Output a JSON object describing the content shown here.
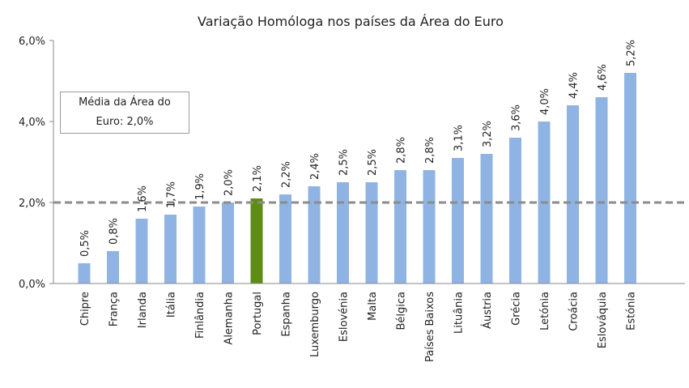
{
  "chart_data": {
    "type": "bar",
    "title": "Variação Homóloga nos países da Área do Euro",
    "xlabel": "",
    "ylabel": "",
    "ylim": [
      0,
      6
    ],
    "yticks": [
      "0,0%",
      "2,0%",
      "4,0%",
      "6,0%"
    ],
    "categories": [
      "Chipre",
      "França",
      "Irlanda",
      "Itália",
      "Finlândia",
      "Alemanha",
      "Portugal",
      "Espanha",
      "Luxemburgo",
      "Eslovénia",
      "Malta",
      "Bélgica",
      "Países Baixos",
      "Lituânia",
      "Áustria",
      "Grécia",
      "Letónia",
      "Croácia",
      "Eslováquia",
      "Estónia"
    ],
    "values": [
      0.5,
      0.8,
      1.6,
      1.7,
      1.9,
      2.0,
      2.1,
      2.2,
      2.4,
      2.5,
      2.5,
      2.8,
      2.8,
      3.1,
      3.2,
      3.6,
      4.0,
      4.4,
      4.6,
      5.2
    ],
    "value_labels": [
      "0,5%",
      "0,8%",
      "1,6%",
      "1,7%",
      "1,9%",
      "2,0%",
      "2,1%",
      "2,2%",
      "2,4%",
      "2,5%",
      "2,5%",
      "2,8%",
      "2,8%",
      "3,1%",
      "3,2%",
      "3,6%",
      "4,0%",
      "4,4%",
      "4,6%",
      "5,2%"
    ],
    "highlight": "Portugal",
    "reference_line": {
      "value": 2.0,
      "style": "dashed"
    },
    "annotation": "Média da Área do Euro: 2,0%",
    "colors": {
      "bar": "#8fb4e3",
      "highlight": "#5e8c16",
      "reference_line": "#8c8c8c"
    },
    "grid": false,
    "legend": "none"
  }
}
